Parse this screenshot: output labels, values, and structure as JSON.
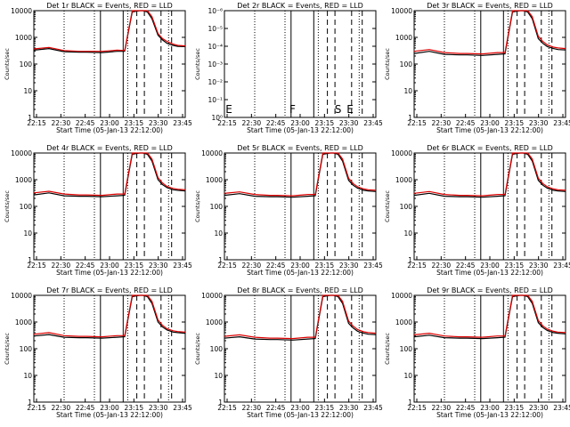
{
  "chart_data": [
    {
      "type": "line",
      "title": "Det 1r BLACK = Events, RED = LLD",
      "xlabel": "Start Time (05-Jan-13 22:12:00)",
      "ylabel": "Counts/sec",
      "yscale": "log",
      "ylim": [
        1,
        10000
      ],
      "yticks": [
        "1",
        "10",
        "100",
        "1000",
        "10000"
      ],
      "xticks": [
        "22:15",
        "22:30",
        "22:45",
        "23:00",
        "23:15",
        "23:30",
        "23:45"
      ],
      "xlim_min": [
        0,
        100
      ],
      "series": [
        {
          "name": "BLACK = Events",
          "color": "#000000",
          "x": [
            0,
            10,
            20,
            30,
            35,
            45,
            55,
            60,
            65,
            70,
            72,
            75,
            78,
            82,
            85,
            88,
            92,
            95,
            100
          ],
          "y": [
            330,
            380,
            290,
            280,
            280,
            270,
            300,
            300,
            9000,
            10000,
            10000,
            9000,
            5000,
            1200,
            800,
            600,
            500,
            460,
            450
          ]
        },
        {
          "name": "RED = LLD",
          "color": "#dd0000",
          "x": [
            0,
            10,
            20,
            30,
            35,
            45,
            55,
            60,
            65,
            70,
            72,
            75,
            78,
            82,
            85,
            88,
            92,
            95,
            100
          ],
          "y": [
            370,
            420,
            320,
            300,
            300,
            300,
            330,
            320,
            10000,
            10000,
            10000,
            10000,
            6000,
            1400,
            900,
            700,
            560,
            500,
            480
          ]
        }
      ],
      "annotations": []
    },
    {
      "type": "line",
      "title": "Det 2r BLACK = Events, RED = LLD",
      "xlabel": "Start Time (05-Jan-13 22:12:00)",
      "ylabel": "Counts/sec",
      "yscale": "log",
      "ylim": [
        1,
        1e-06
      ],
      "yticks": [
        "10⁰",
        "10⁻¹",
        "10⁻²",
        "10⁻³",
        "10⁻⁴",
        "10⁻⁵",
        "10⁻⁶"
      ],
      "xticks": [
        "22:15",
        "22:30",
        "22:45",
        "23:00",
        "23:15",
        "23:30",
        "23:45"
      ],
      "series": [],
      "annotations": [
        "E",
        "F",
        "S",
        "E"
      ]
    },
    {
      "type": "line",
      "title": "Det 3r BLACK = Events, RED = LLD",
      "xlabel": "Start Time (05-Jan-13 22:12:00)",
      "ylabel": "Counts/sec",
      "yscale": "log",
      "ylim": [
        1,
        10000
      ],
      "yticks": [
        "1",
        "10",
        "100",
        "1000",
        "10000"
      ],
      "xticks": [
        "22:15",
        "22:30",
        "22:45",
        "23:00",
        "23:15",
        "23:30",
        "23:45"
      ],
      "series": [
        {
          "name": "BLACK = Events",
          "color": "#000000",
          "x": [
            0,
            10,
            20,
            30,
            35,
            45,
            55,
            60,
            65,
            70,
            72,
            75,
            78,
            82,
            85,
            88,
            92,
            95,
            100
          ],
          "y": [
            250,
            300,
            230,
            220,
            220,
            210,
            230,
            240,
            9000,
            10000,
            10000,
            9000,
            5000,
            900,
            600,
            450,
            380,
            350,
            340
          ]
        },
        {
          "name": "RED = LLD",
          "color": "#dd0000",
          "x": [
            0,
            10,
            20,
            30,
            35,
            45,
            55,
            60,
            65,
            70,
            72,
            75,
            78,
            82,
            85,
            88,
            92,
            95,
            100
          ],
          "y": [
            300,
            350,
            270,
            250,
            250,
            240,
            270,
            270,
            10000,
            10000,
            10000,
            10000,
            6000,
            1100,
            700,
            520,
            430,
            400,
            380
          ]
        }
      ],
      "annotations": []
    },
    {
      "type": "line",
      "title": "Det 4r BLACK = Events, RED = LLD",
      "xlabel": "Start Time (05-Jan-13 22:12:00)",
      "ylabel": "Counts/sec",
      "yscale": "log",
      "ylim": [
        1,
        10000
      ],
      "yticks": [
        "1",
        "10",
        "100",
        "1000",
        "10000"
      ],
      "xticks": [
        "22:15",
        "22:30",
        "22:45",
        "23:00",
        "23:15",
        "23:30",
        "23:45"
      ],
      "series": [
        {
          "name": "BLACK = Events",
          "color": "#000000",
          "x": [
            0,
            10,
            20,
            30,
            35,
            45,
            55,
            60,
            65,
            70,
            72,
            75,
            78,
            82,
            85,
            88,
            92,
            95,
            100
          ],
          "y": [
            270,
            320,
            250,
            240,
            240,
            230,
            250,
            260,
            9000,
            10000,
            10000,
            9000,
            5000,
            1000,
            650,
            500,
            420,
            400,
            380
          ]
        },
        {
          "name": "RED = LLD",
          "color": "#dd0000",
          "x": [
            0,
            10,
            20,
            30,
            35,
            45,
            55,
            60,
            65,
            70,
            72,
            75,
            78,
            82,
            85,
            88,
            92,
            95,
            100
          ],
          "y": [
            320,
            370,
            290,
            270,
            270,
            260,
            290,
            290,
            10000,
            10000,
            10000,
            10000,
            6000,
            1200,
            750,
            560,
            470,
            440,
            420
          ]
        }
      ],
      "annotations": []
    },
    {
      "type": "line",
      "title": "Det 5r BLACK = Events, RED = LLD",
      "xlabel": "Start Time (05-Jan-13 22:12:00)",
      "ylabel": "Counts/sec",
      "yscale": "log",
      "ylim": [
        1,
        10000
      ],
      "yticks": [
        "1",
        "10",
        "100",
        "1000",
        "10000"
      ],
      "xticks": [
        "22:15",
        "22:30",
        "22:45",
        "23:00",
        "23:15",
        "23:30",
        "23:45"
      ],
      "series": [
        {
          "name": "BLACK = Events",
          "color": "#000000",
          "x": [
            0,
            10,
            20,
            30,
            35,
            45,
            55,
            60,
            65,
            70,
            72,
            75,
            78,
            82,
            85,
            88,
            92,
            95,
            100
          ],
          "y": [
            260,
            300,
            240,
            230,
            230,
            220,
            240,
            250,
            9000,
            10000,
            10000,
            9000,
            5000,
            950,
            620,
            480,
            400,
            380,
            360
          ]
        },
        {
          "name": "RED = LLD",
          "color": "#dd0000",
          "x": [
            0,
            10,
            20,
            30,
            35,
            45,
            55,
            60,
            65,
            70,
            72,
            75,
            78,
            82,
            85,
            88,
            92,
            95,
            100
          ],
          "y": [
            310,
            350,
            280,
            260,
            260,
            250,
            280,
            280,
            10000,
            10000,
            10000,
            10000,
            6000,
            1150,
            720,
            540,
            450,
            420,
            400
          ]
        }
      ],
      "annotations": []
    },
    {
      "type": "line",
      "title": "Det 6r BLACK = Events, RED = LLD",
      "xlabel": "Start Time (05-Jan-13 22:12:00)",
      "ylabel": "Counts/sec",
      "yscale": "log",
      "ylim": [
        1,
        10000
      ],
      "yticks": [
        "1",
        "10",
        "100",
        "1000",
        "10000"
      ],
      "xticks": [
        "22:15",
        "22:30",
        "22:45",
        "23:00",
        "23:15",
        "23:30",
        "23:45"
      ],
      "series": [
        {
          "name": "BLACK = Events",
          "color": "#000000",
          "x": [
            0,
            10,
            20,
            30,
            35,
            45,
            55,
            60,
            65,
            70,
            72,
            75,
            78,
            82,
            85,
            88,
            92,
            95,
            100
          ],
          "y": [
            260,
            310,
            240,
            230,
            230,
            220,
            240,
            250,
            9000,
            10000,
            10000,
            9000,
            5000,
            950,
            620,
            480,
            400,
            380,
            360
          ]
        },
        {
          "name": "RED = LLD",
          "color": "#dd0000",
          "x": [
            0,
            10,
            20,
            30,
            35,
            45,
            55,
            60,
            65,
            70,
            72,
            75,
            78,
            82,
            85,
            88,
            92,
            95,
            100
          ],
          "y": [
            310,
            360,
            280,
            260,
            260,
            250,
            280,
            280,
            10000,
            10000,
            10000,
            10000,
            6000,
            1150,
            720,
            540,
            450,
            420,
            400
          ]
        }
      ],
      "annotations": []
    },
    {
      "type": "line",
      "title": "Det 7r BLACK = Events, RED = LLD",
      "xlabel": "Start Time (05-Jan-13 22:12:00)",
      "ylabel": "Counts/sec",
      "yscale": "log",
      "ylim": [
        1,
        10000
      ],
      "yticks": [
        "1",
        "10",
        "100",
        "1000",
        "10000"
      ],
      "xticks": [
        "22:15",
        "22:30",
        "22:45",
        "23:00",
        "23:15",
        "23:30",
        "23:45"
      ],
      "series": [
        {
          "name": "BLACK = Events",
          "color": "#000000",
          "x": [
            0,
            10,
            20,
            30,
            35,
            45,
            55,
            60,
            65,
            70,
            72,
            75,
            78,
            82,
            85,
            88,
            92,
            95,
            100
          ],
          "y": [
            300,
            340,
            270,
            260,
            260,
            250,
            270,
            280,
            9000,
            10000,
            10000,
            9000,
            5000,
            1000,
            650,
            500,
            420,
            400,
            380
          ]
        },
        {
          "name": "RED = LLD",
          "color": "#dd0000",
          "x": [
            0,
            10,
            20,
            30,
            35,
            45,
            55,
            60,
            65,
            70,
            72,
            75,
            78,
            82,
            85,
            88,
            92,
            95,
            100
          ],
          "y": [
            350,
            400,
            310,
            290,
            290,
            280,
            310,
            310,
            10000,
            10000,
            10000,
            10000,
            6000,
            1200,
            750,
            560,
            470,
            440,
            420
          ]
        }
      ],
      "annotations": []
    },
    {
      "type": "line",
      "title": "Det 8r BLACK = Events, RED = LLD",
      "xlabel": "Start Time (05-Jan-13 22:12:00)",
      "ylabel": "Counts/sec",
      "yscale": "log",
      "ylim": [
        1,
        10000
      ],
      "yticks": [
        "1",
        "10",
        "100",
        "1000",
        "10000"
      ],
      "xticks": [
        "22:15",
        "22:30",
        "22:45",
        "23:00",
        "23:15",
        "23:30",
        "23:45"
      ],
      "series": [
        {
          "name": "BLACK = Events",
          "color": "#000000",
          "x": [
            0,
            10,
            20,
            30,
            35,
            45,
            55,
            60,
            65,
            70,
            72,
            75,
            78,
            82,
            85,
            88,
            92,
            95,
            100
          ],
          "y": [
            250,
            280,
            230,
            220,
            220,
            210,
            230,
            240,
            9000,
            10000,
            10000,
            9000,
            5000,
            900,
            600,
            450,
            380,
            350,
            340
          ]
        },
        {
          "name": "RED = LLD",
          "color": "#dd0000",
          "x": [
            0,
            10,
            20,
            30,
            35,
            45,
            55,
            60,
            65,
            70,
            72,
            75,
            78,
            82,
            85,
            88,
            92,
            95,
            100
          ],
          "y": [
            290,
            330,
            270,
            250,
            250,
            240,
            270,
            270,
            10000,
            10000,
            10000,
            10000,
            6000,
            1100,
            700,
            520,
            430,
            400,
            380
          ]
        }
      ],
      "annotations": []
    },
    {
      "type": "line",
      "title": "Det 9r BLACK = Events, RED = LLD",
      "xlabel": "Start Time (05-Jan-13 22:12:00)",
      "ylabel": "Counts/sec",
      "yscale": "log",
      "ylim": [
        1,
        10000
      ],
      "yticks": [
        "1",
        "10",
        "100",
        "1000",
        "10000"
      ],
      "xticks": [
        "22:15",
        "22:30",
        "22:45",
        "23:00",
        "23:15",
        "23:30",
        "23:45"
      ],
      "series": [
        {
          "name": "BLACK = Events",
          "color": "#000000",
          "x": [
            0,
            10,
            20,
            30,
            35,
            45,
            55,
            60,
            65,
            70,
            72,
            75,
            78,
            82,
            85,
            88,
            92,
            95,
            100
          ],
          "y": [
            280,
            320,
            260,
            250,
            250,
            240,
            260,
            270,
            9000,
            10000,
            10000,
            9000,
            5000,
            950,
            620,
            480,
            400,
            380,
            360
          ]
        },
        {
          "name": "RED = LLD",
          "color": "#dd0000",
          "x": [
            0,
            10,
            20,
            30,
            35,
            45,
            55,
            60,
            65,
            70,
            72,
            75,
            78,
            82,
            85,
            88,
            92,
            95,
            100
          ],
          "y": [
            330,
            380,
            300,
            280,
            280,
            270,
            300,
            300,
            10000,
            10000,
            10000,
            10000,
            6000,
            1150,
            720,
            540,
            450,
            420,
            400
          ]
        }
      ],
      "annotations": []
    }
  ]
}
